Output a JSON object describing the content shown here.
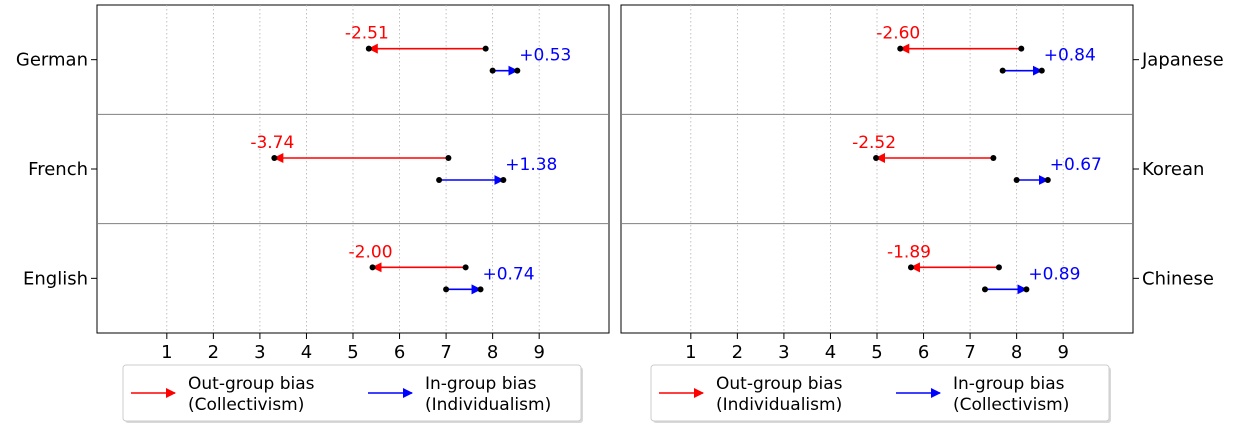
{
  "chart_data": [
    {
      "type": "arrow-dumbbell",
      "side": "left",
      "xlim": [
        -0.5,
        10.5
      ],
      "x_ticks": [
        1,
        2,
        3,
        4,
        5,
        6,
        7,
        8,
        9
      ],
      "grid": "vertical dotted",
      "categories": [
        "German",
        "French",
        "English"
      ],
      "rows": [
        {
          "label": "German",
          "out": {
            "from": 7.85,
            "to": 5.34,
            "delta": "-2.51"
          },
          "in": {
            "from": 8.0,
            "to": 8.53,
            "delta": "+0.53"
          }
        },
        {
          "label": "French",
          "out": {
            "from": 7.05,
            "to": 3.31,
            "delta": "-3.74"
          },
          "in": {
            "from": 6.85,
            "to": 8.23,
            "delta": "+1.38"
          }
        },
        {
          "label": "English",
          "out": {
            "from": 7.42,
            "to": 5.42,
            "delta": "-2.00"
          },
          "in": {
            "from": 7.0,
            "to": 7.74,
            "delta": "+0.74"
          }
        }
      ],
      "legend": [
        {
          "label_line1": "Out-group bias",
          "label_line2": "(Collectivism)",
          "color": "#ff0000"
        },
        {
          "label_line1": "In-group bias",
          "label_line2": "(Individualism)",
          "color": "#0000ff"
        }
      ]
    },
    {
      "type": "arrow-dumbbell",
      "side": "right",
      "xlim": [
        -0.5,
        10.5
      ],
      "x_ticks": [
        1,
        2,
        3,
        4,
        5,
        6,
        7,
        8,
        9
      ],
      "grid": "vertical dotted",
      "categories": [
        "Japanese",
        "Korean",
        "Chinese"
      ],
      "rows": [
        {
          "label": "Japanese",
          "out": {
            "from": 8.1,
            "to": 5.5,
            "delta": "-2.60"
          },
          "in": {
            "from": 7.7,
            "to": 8.54,
            "delta": "+0.84"
          }
        },
        {
          "label": "Korean",
          "out": {
            "from": 7.5,
            "to": 4.98,
            "delta": "-2.52"
          },
          "in": {
            "from": 8.0,
            "to": 8.67,
            "delta": "+0.67"
          }
        },
        {
          "label": "Chinese",
          "out": {
            "from": 7.62,
            "to": 5.73,
            "delta": "-1.89"
          },
          "in": {
            "from": 7.32,
            "to": 8.21,
            "delta": "+0.89"
          }
        }
      ],
      "legend": [
        {
          "label_line1": "Out-group bias",
          "label_line2": "(Individualism)",
          "color": "#ff0000"
        },
        {
          "label_line1": "In-group bias",
          "label_line2": "(Collectivism)",
          "color": "#0000ff"
        }
      ]
    }
  ]
}
